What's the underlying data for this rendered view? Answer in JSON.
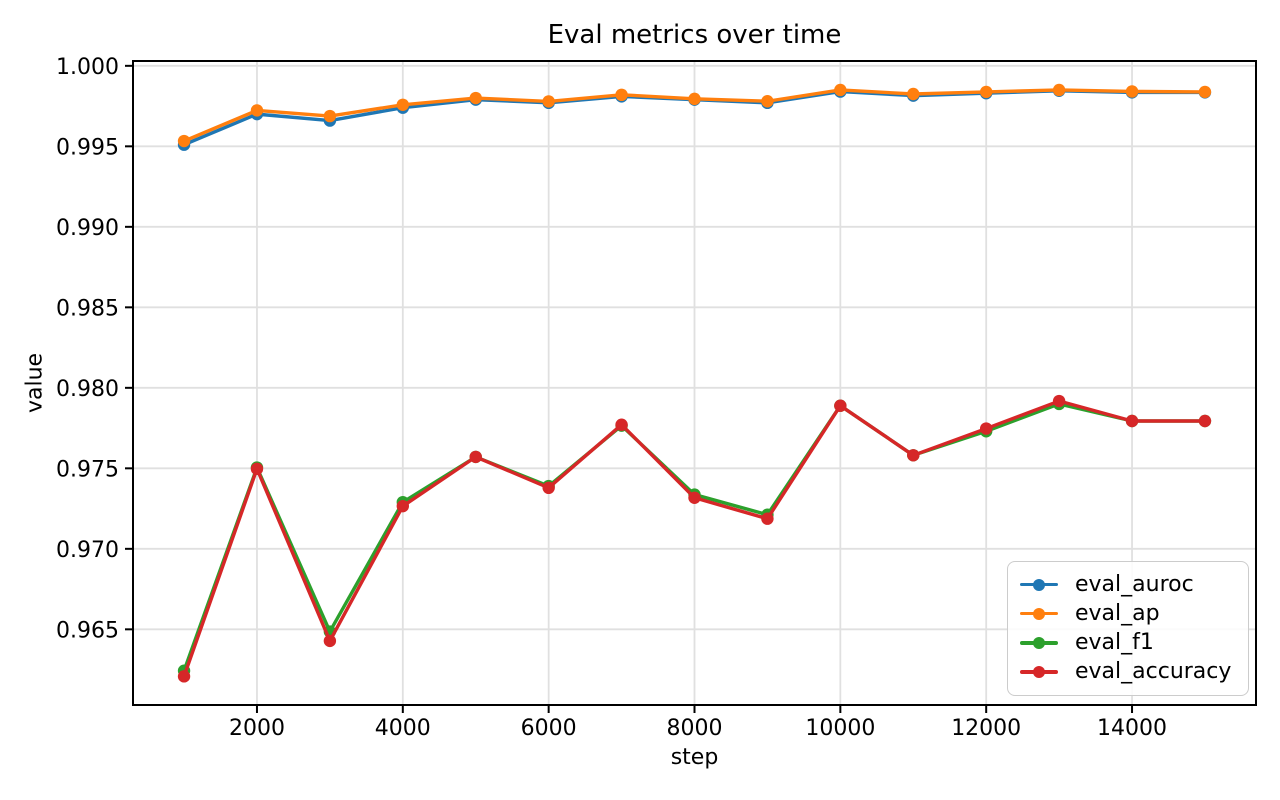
{
  "chart_data": {
    "type": "line",
    "title": "Eval metrics over time",
    "xlabel": "step",
    "ylabel": "value",
    "grid": true,
    "legend_position": "lower right",
    "xlim": [
      300,
      15700
    ],
    "ylim": [
      0.9603,
      1.0003
    ],
    "xticks": [
      2000,
      4000,
      6000,
      8000,
      10000,
      12000,
      14000
    ],
    "xtick_labels": [
      "2000",
      "4000",
      "6000",
      "8000",
      "10000",
      "12000",
      "14000"
    ],
    "yticks": [
      0.965,
      0.97,
      0.975,
      0.98,
      0.985,
      0.99,
      0.995,
      1.0
    ],
    "ytick_labels": [
      "0.965",
      "0.970",
      "0.975",
      "0.980",
      "0.985",
      "0.990",
      "0.995",
      "1.000"
    ],
    "x": [
      1000,
      2000,
      3000,
      4000,
      5000,
      6000,
      7000,
      8000,
      9000,
      10000,
      11000,
      12000,
      13000,
      14000,
      15000
    ],
    "series": [
      {
        "name": "eval_auroc",
        "color": "#1f77b4",
        "values": [
          0.9951,
          0.997,
          0.9966,
          0.9974,
          0.9979,
          0.9977,
          0.9981,
          0.9979,
          0.9977,
          0.9984,
          0.99815,
          0.9983,
          0.99845,
          0.99835,
          0.99835
        ]
      },
      {
        "name": "eval_ap",
        "color": "#ff7f0e",
        "values": [
          0.99533,
          0.99723,
          0.99688,
          0.99758,
          0.998,
          0.99779,
          0.9982,
          0.99795,
          0.9978,
          0.9985,
          0.99825,
          0.99838,
          0.9985,
          0.99841,
          0.99838
        ]
      },
      {
        "name": "eval_f1",
        "color": "#2ca02c",
        "values": [
          0.96243,
          0.97505,
          0.96486,
          0.9729,
          0.97571,
          0.9739,
          0.97765,
          0.97337,
          0.97212,
          0.97889,
          0.97581,
          0.9773,
          0.979,
          0.97794,
          0.97794
        ]
      },
      {
        "name": "eval_accuracy",
        "color": "#d62728",
        "values": [
          0.96208,
          0.97497,
          0.96428,
          0.97265,
          0.97571,
          0.97379,
          0.97771,
          0.97317,
          0.97187,
          0.97889,
          0.97581,
          0.97747,
          0.97918,
          0.97794,
          0.97794
        ]
      }
    ],
    "style": {
      "grid_color": "#e0e0e0",
      "spine_color": "#000000",
      "tick_color": "#000000",
      "background": "#ffffff"
    }
  }
}
